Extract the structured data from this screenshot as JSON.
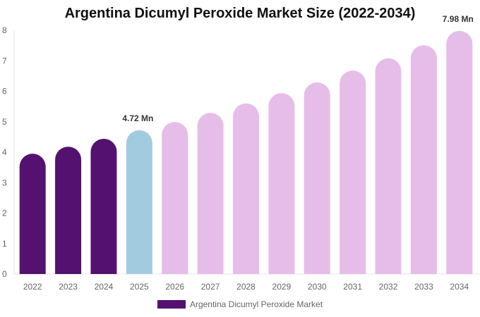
{
  "chart_data": {
    "type": "bar",
    "title": "Argentina Dicumyl Peroxide Market Size (2022-2034)",
    "categories": [
      "2022",
      "2023",
      "2024",
      "2025",
      "2026",
      "2027",
      "2028",
      "2029",
      "2030",
      "2031",
      "2032",
      "2033",
      "2034"
    ],
    "series": [
      {
        "name": "Argentina Dicumyl Peroxide Market",
        "values": [
          3.95,
          4.18,
          4.44,
          4.72,
          4.99,
          5.29,
          5.6,
          5.94,
          6.29,
          6.68,
          7.08,
          7.51,
          7.98
        ]
      }
    ],
    "data_labels": {
      "2025": "4.72 Mn",
      "2034": "7.98 Mn"
    },
    "ylim": [
      0,
      8
    ],
    "yticks": [
      "0",
      "1",
      "2",
      "3",
      "4",
      "5",
      "6",
      "7",
      "8"
    ],
    "grid": false,
    "legend": "bottom",
    "colors": {
      "historical": "#541170",
      "current": "#a3cbe0",
      "forecast": "#e6bde9"
    }
  }
}
